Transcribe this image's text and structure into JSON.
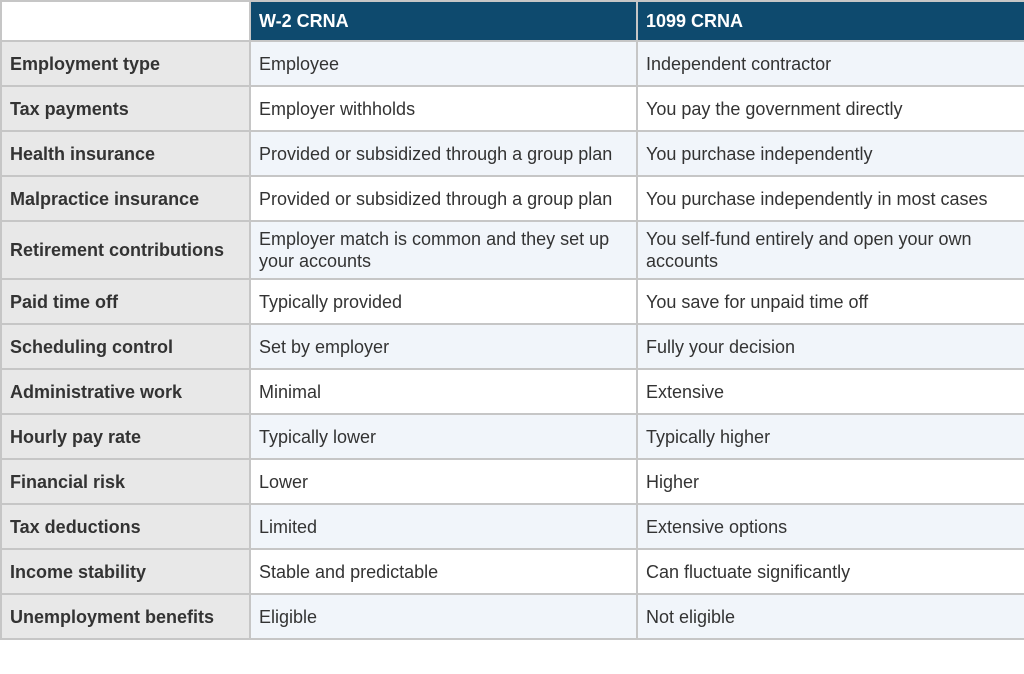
{
  "table": {
    "headers": [
      "",
      "W-2 CRNA",
      "1099 CRNA"
    ],
    "rows": [
      {
        "label": "Employment type",
        "w2": "Employee",
        "c1099": "Independent contractor"
      },
      {
        "label": "Tax payments",
        "w2": "Employer withholds",
        "c1099": "You pay the government directly"
      },
      {
        "label": "Health insurance",
        "w2": "Provided or subsidized through a group plan",
        "c1099": "You purchase independently"
      },
      {
        "label": "Malpractice insurance",
        "w2": "Provided or subsidized through a group plan",
        "c1099": "You purchase independently in most cases"
      },
      {
        "label": "Retirement contributions",
        "w2": "Employer match is common and they set up your accounts",
        "c1099": "You self-fund entirely and open your own accounts"
      },
      {
        "label": "Paid time off",
        "w2": "Typically provided",
        "c1099": "You save for unpaid time off"
      },
      {
        "label": "Scheduling control",
        "w2": "Set by employer",
        "c1099": "Fully your decision"
      },
      {
        "label": "Administrative work",
        "w2": "Minimal",
        "c1099": "Extensive"
      },
      {
        "label": "Hourly pay rate",
        "w2": "Typically lower",
        "c1099": "Typically higher"
      },
      {
        "label": "Financial risk",
        "w2": "Lower",
        "c1099": "Higher"
      },
      {
        "label": "Tax deductions",
        "w2": "Limited",
        "c1099": "Extensive options"
      },
      {
        "label": "Income stability",
        "w2": "Stable and predictable",
        "c1099": "Can fluctuate significantly"
      },
      {
        "label": "Unemployment benefits",
        "w2": "Eligible",
        "c1099": "Not eligible"
      }
    ]
  },
  "colors": {
    "header_bg": "#0e4a6e",
    "header_text": "#ffffff",
    "label_bg": "#e8e8e8",
    "stripe_bg": "#f1f5fa",
    "border": "#c6c6c6"
  }
}
